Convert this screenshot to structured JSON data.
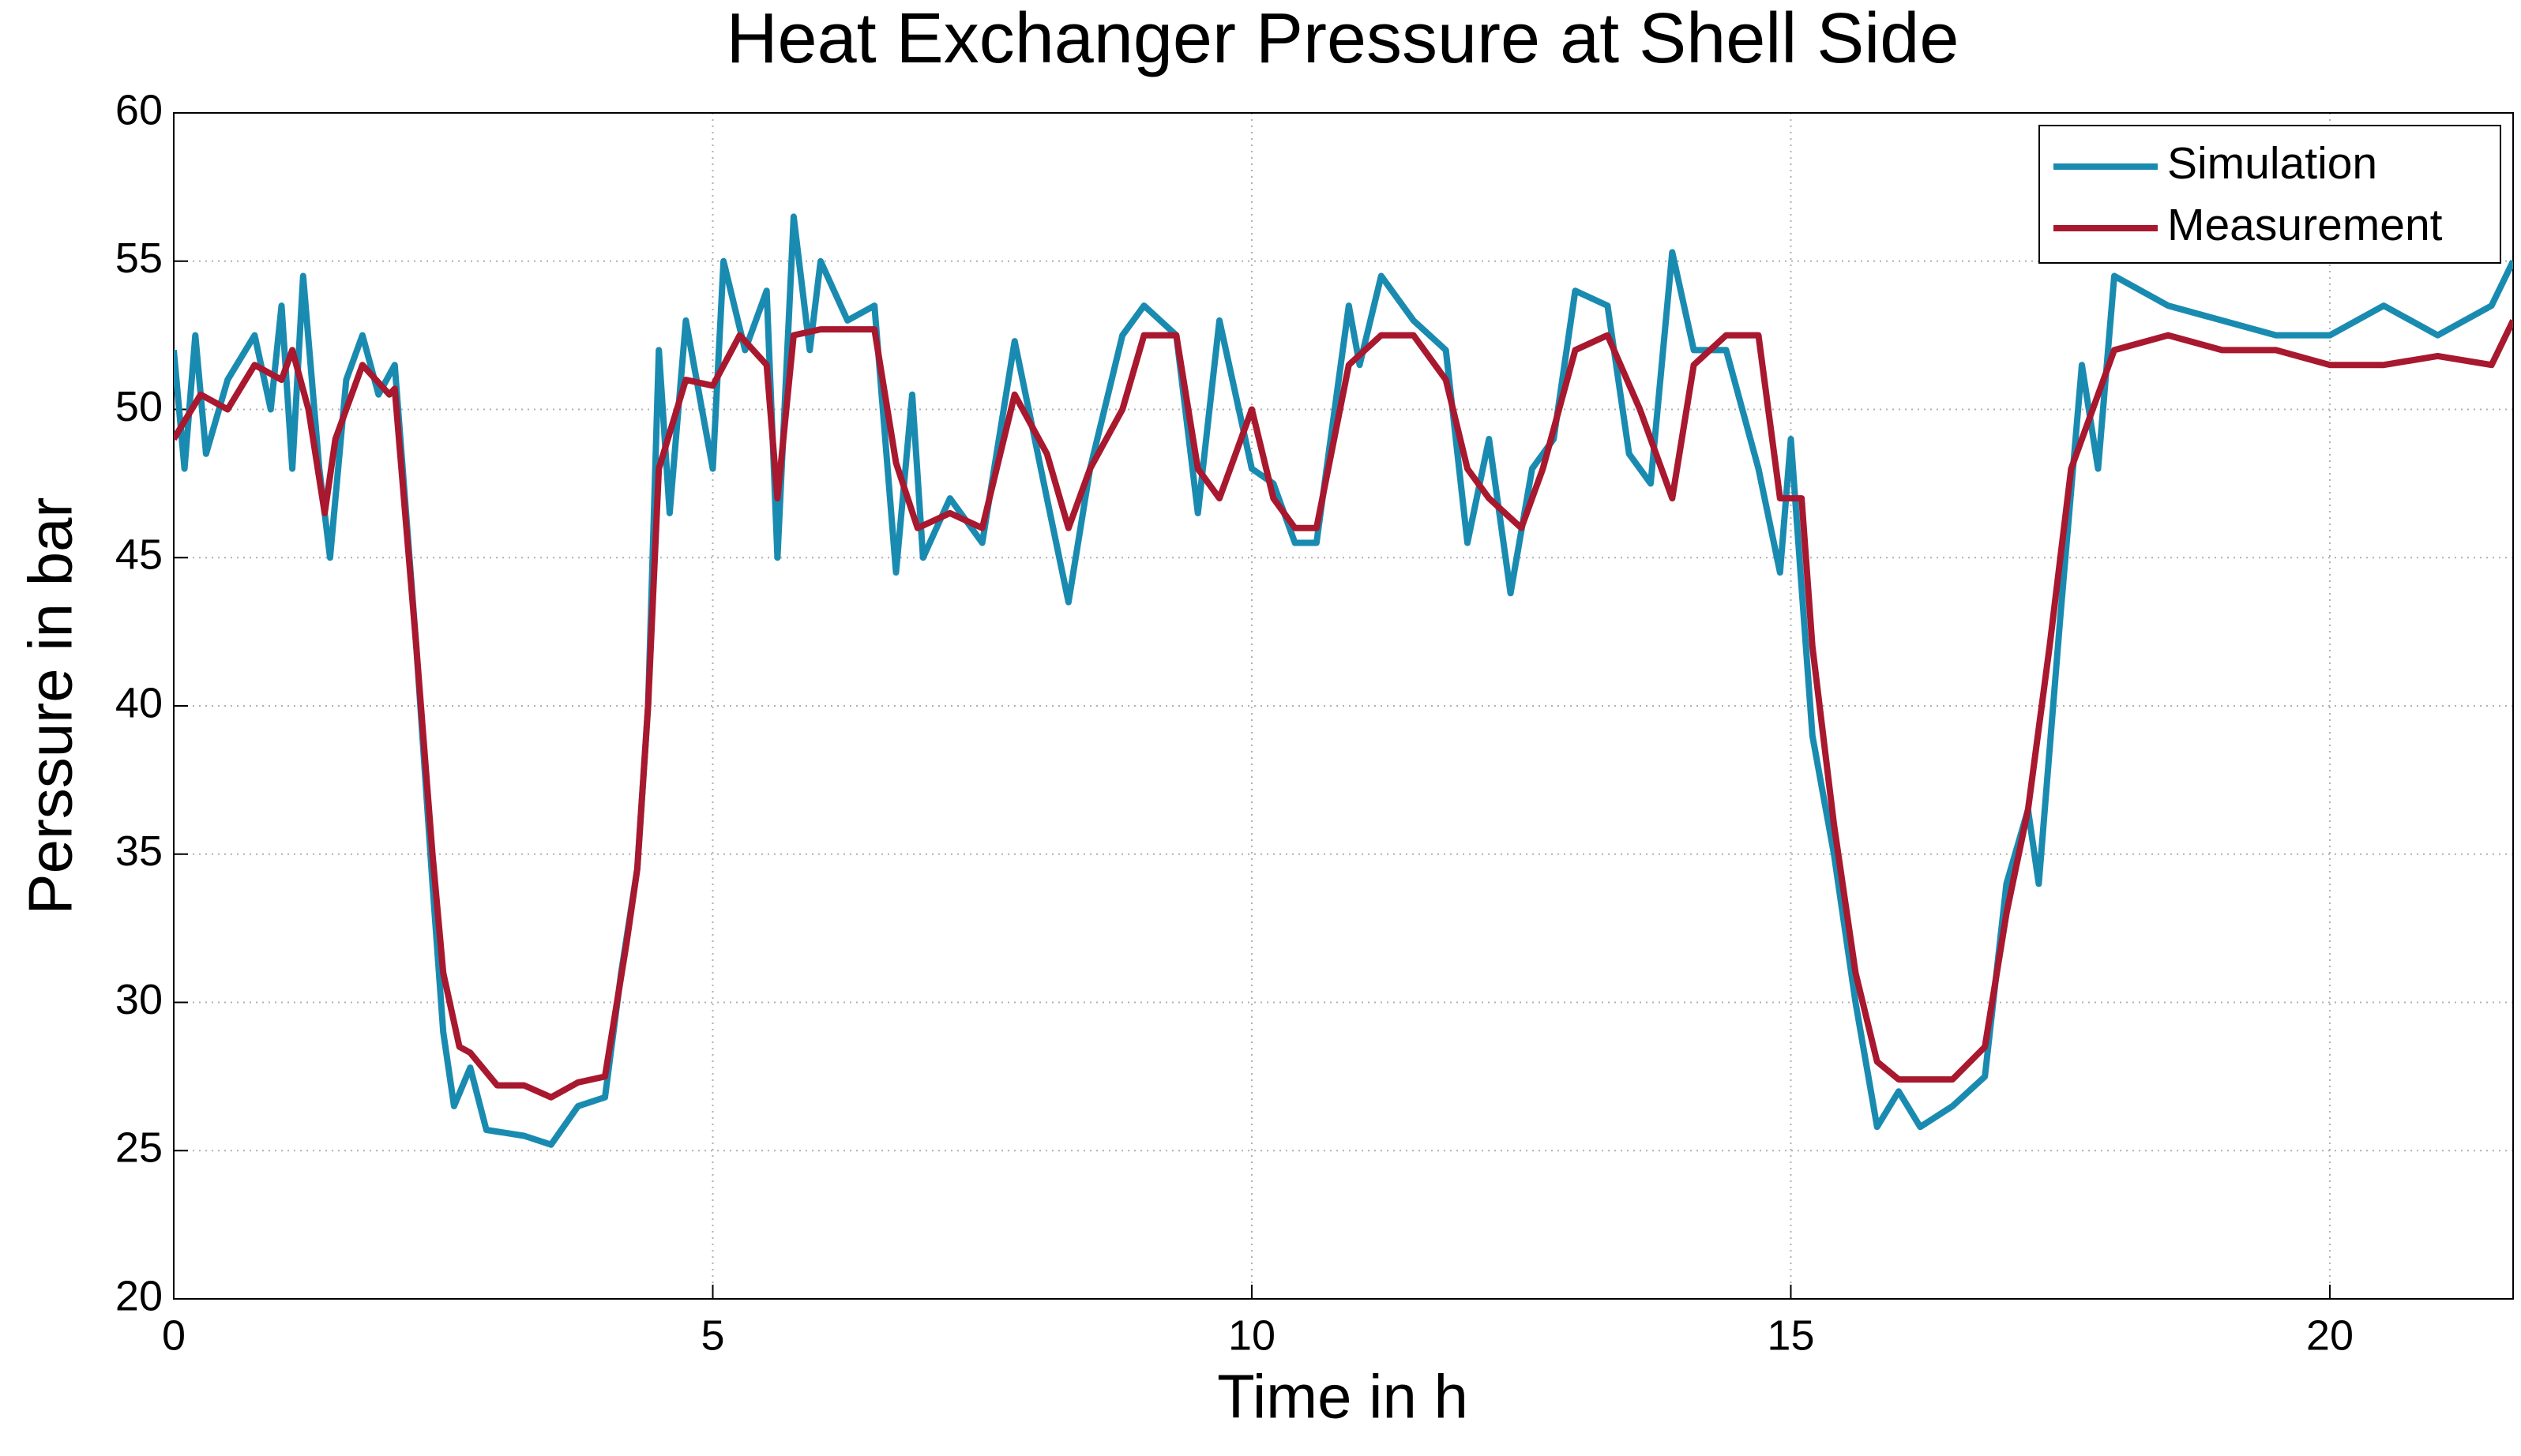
{
  "chart_data": {
    "type": "line",
    "title": "Heat Exchanger Pressure at Shell Side",
    "xlabel": "Time in h",
    "ylabel": "Perssure in bar",
    "xlim": [
      0,
      21.7
    ],
    "ylim": [
      20,
      60
    ],
    "xticks": [
      0,
      5,
      10,
      15,
      20
    ],
    "yticks": [
      20,
      25,
      30,
      35,
      40,
      45,
      50,
      55,
      60
    ],
    "grid": true,
    "legend": "upper right",
    "series": [
      {
        "name": "Simulation",
        "color": "#1a8bb0",
        "x": [
          0,
          0.1,
          0.2,
          0.3,
          0.5,
          0.75,
          0.9,
          1.0,
          1.1,
          1.2,
          1.35,
          1.45,
          1.6,
          1.75,
          1.9,
          2.05,
          2.25,
          2.4,
          2.5,
          2.6,
          2.75,
          2.9,
          3.25,
          3.5,
          3.75,
          4.0,
          4.15,
          4.3,
          4.4,
          4.5,
          4.6,
          4.75,
          4.9,
          5.0,
          5.1,
          5.3,
          5.5,
          5.6,
          5.75,
          5.9,
          6.0,
          6.25,
          6.5,
          6.7,
          6.85,
          6.95,
          7.2,
          7.5,
          7.8,
          8.1,
          8.3,
          8.5,
          8.8,
          9.0,
          9.3,
          9.5,
          9.7,
          10.0,
          10.2,
          10.4,
          10.6,
          10.9,
          11.0,
          11.2,
          11.5,
          11.8,
          12.0,
          12.2,
          12.4,
          12.6,
          12.8,
          13.0,
          13.3,
          13.5,
          13.7,
          13.9,
          14.1,
          14.4,
          14.7,
          14.9,
          15.0,
          15.1,
          15.2,
          15.4,
          15.6,
          15.8,
          16.0,
          16.2,
          16.5,
          16.8,
          17.0,
          17.2,
          17.3,
          17.5,
          17.7,
          17.85,
          18.0,
          18.5,
          19.0,
          19.5,
          20.0,
          20.5,
          21.0,
          21.5,
          21.7
        ],
        "values": [
          52,
          48,
          52.5,
          48.5,
          51,
          52.5,
          50,
          53.5,
          48,
          54.5,
          48,
          45,
          51,
          52.5,
          50.5,
          51.5,
          42,
          34,
          29,
          26.5,
          27.8,
          25.7,
          25.5,
          25.2,
          26.5,
          26.8,
          31,
          34.5,
          40,
          52,
          46.5,
          53,
          50,
          48,
          55,
          52,
          54,
          45,
          56.5,
          52,
          55,
          53,
          53.5,
          44.5,
          50.5,
          45,
          47,
          45.5,
          52.3,
          47,
          43.5,
          48,
          52.5,
          53.5,
          52.5,
          46.5,
          53,
          48,
          47.5,
          45.5,
          45.5,
          53.5,
          51.5,
          54.5,
          53,
          52,
          45.5,
          49,
          43.8,
          48,
          49,
          54,
          53.5,
          48.5,
          47.5,
          55.3,
          52,
          52,
          48,
          44.5,
          49,
          44,
          39,
          35,
          30,
          25.8,
          27,
          25.8,
          26.5,
          27.5,
          34,
          36.5,
          34,
          43,
          51.5,
          48,
          54.5,
          53.5,
          53,
          52.5,
          52.5,
          53.5,
          52.5,
          53.5,
          55
        ]
      },
      {
        "name": "Measurement",
        "color": "#a8182e",
        "x": [
          0,
          0.25,
          0.5,
          0.75,
          1.0,
          1.1,
          1.25,
          1.4,
          1.5,
          1.75,
          2.0,
          2.05,
          2.25,
          2.4,
          2.5,
          2.65,
          2.75,
          3.0,
          3.25,
          3.5,
          3.75,
          4.0,
          4.2,
          4.3,
          4.4,
          4.5,
          4.75,
          5.0,
          5.25,
          5.5,
          5.6,
          5.75,
          6.0,
          6.5,
          6.7,
          6.9,
          7.2,
          7.5,
          7.8,
          8.1,
          8.3,
          8.5,
          8.8,
          9.0,
          9.3,
          9.5,
          9.7,
          10.0,
          10.2,
          10.4,
          10.6,
          10.9,
          11.2,
          11.5,
          11.8,
          12.0,
          12.2,
          12.5,
          12.7,
          13.0,
          13.3,
          13.6,
          13.9,
          14.1,
          14.4,
          14.7,
          14.9,
          15.1,
          15.2,
          15.4,
          15.6,
          15.8,
          16.0,
          16.5,
          16.8,
          17.0,
          17.2,
          17.4,
          17.6,
          17.8,
          18.0,
          18.5,
          19.0,
          19.5,
          20.0,
          20.5,
          21.0,
          21.5,
          21.7
        ],
        "values": [
          49,
          50.5,
          50,
          51.5,
          51,
          52,
          50,
          46.5,
          49,
          51.5,
          50.5,
          50.7,
          42,
          35,
          31,
          28.5,
          28.3,
          27.2,
          27.2,
          26.8,
          27.3,
          27.5,
          32,
          34.5,
          40,
          48,
          51,
          50.8,
          52.5,
          51.5,
          47,
          52.5,
          52.7,
          52.7,
          48.2,
          46,
          46.5,
          46,
          50.5,
          48.5,
          46,
          48,
          50,
          52.5,
          52.5,
          48,
          47,
          50,
          47,
          46,
          46,
          51.5,
          52.5,
          52.5,
          51,
          48,
          47,
          46,
          48,
          52,
          52.5,
          50,
          47,
          51.5,
          52.5,
          52.5,
          47,
          47,
          42,
          36,
          31,
          28,
          27.4,
          27.4,
          28.5,
          33,
          36.5,
          42,
          48,
          50,
          52,
          52.5,
          52,
          52,
          51.5,
          51.5,
          51.8,
          51.5,
          53
        ]
      }
    ]
  }
}
